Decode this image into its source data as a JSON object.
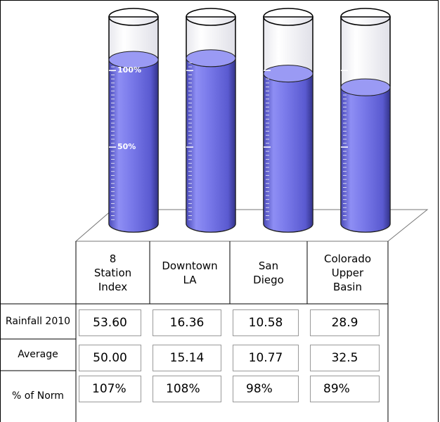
{
  "chart_data": {
    "type": "cylinder",
    "categories": [
      "8 Station Index",
      "Downtown LA",
      "San Diego",
      "Colorado Upper Basin"
    ],
    "values": [
      107,
      108,
      98,
      89
    ],
    "value_labels": [
      "107%",
      "108%",
      "98%",
      "89%"
    ],
    "values_label": "% of Norm",
    "color": "#7474e8",
    "ylim": [
      0,
      135
    ],
    "yticks": [
      {
        "value": 50,
        "label": "50%"
      },
      {
        "value": 100,
        "label": "100%"
      }
    ],
    "table": [
      {
        "label": "Rainfall 2010",
        "values": [
          "53.60",
          "16.36",
          "10.58",
          "28.9"
        ]
      },
      {
        "label": "Average",
        "values": [
          "50.00",
          "15.14",
          "10.77",
          "32.5"
        ]
      }
    ]
  }
}
